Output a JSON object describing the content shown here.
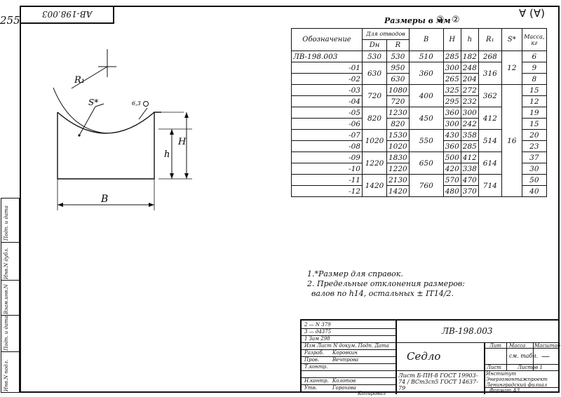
{
  "page_number": "255",
  "top_stamp": "AB-198.003",
  "drawing": {
    "dims": {
      "r1": "R₁",
      "s": "S*",
      "roughness": "6,3",
      "h_small": "h",
      "h_big": "H",
      "b": "B"
    }
  },
  "table": {
    "caption": "Размеры в мм",
    "caption_marks": [
      "②",
      "②"
    ],
    "roughness_mark": "∀ (∀)",
    "headers": {
      "designation": "Обозначение",
      "for_branches": "Для отводов",
      "dn": "Dн",
      "r": "R",
      "b": "B",
      "H": "H",
      "h": "h",
      "r1": "R₁",
      "s": "S*",
      "mass": "Масса, кг"
    },
    "rows": [
      {
        "designation": "ЛВ-198.003",
        "dn": "530",
        "r": "530",
        "b": "510",
        "H": "285",
        "h": "182",
        "r1": "268",
        "s": "",
        "mass": "6"
      },
      {
        "designation": "-01",
        "dn": "630",
        "r": "950",
        "b": "360",
        "H": "300",
        "h": "248",
        "r1": "316",
        "s": "12",
        "mass": "9"
      },
      {
        "designation": "-02",
        "dn": "",
        "r": "630",
        "b": "",
        "H": "265",
        "h": "204",
        "r1": "",
        "s": "",
        "mass": "8"
      },
      {
        "designation": "-03",
        "dn": "720",
        "r": "1080",
        "b": "400",
        "H": "325",
        "h": "272",
        "r1": "362",
        "s": "",
        "mass": "15"
      },
      {
        "designation": "-04",
        "dn": "",
        "r": "720",
        "b": "",
        "H": "295",
        "h": "232",
        "r1": "",
        "s": "",
        "mass": "12"
      },
      {
        "designation": "-05",
        "dn": "820",
        "r": "1230",
        "b": "450",
        "H": "360",
        "h": "300",
        "r1": "412",
        "s": "",
        "mass": "19"
      },
      {
        "designation": "-06",
        "dn": "",
        "r": "820",
        "b": "",
        "H": "300",
        "h": "242",
        "r1": "",
        "s": "16",
        "mass": "15"
      },
      {
        "designation": "-07",
        "dn": "1020",
        "r": "1530",
        "b": "550",
        "H": "430",
        "h": "358",
        "r1": "514",
        "s": "",
        "mass": "20"
      },
      {
        "designation": "-08",
        "dn": "",
        "r": "1020",
        "b": "",
        "H": "360",
        "h": "285",
        "r1": "",
        "s": "",
        "mass": "23"
      },
      {
        "designation": "-09",
        "dn": "1220",
        "r": "1830",
        "b": "650",
        "H": "500",
        "h": "412",
        "r1": "614",
        "s": "",
        "mass": "37"
      },
      {
        "designation": "-10",
        "dn": "",
        "r": "1220",
        "b": "",
        "H": "420",
        "h": "338",
        "r1": "",
        "s": "",
        "mass": "30"
      },
      {
        "designation": "-11",
        "dn": "1420",
        "r": "2130",
        "b": "760",
        "H": "570",
        "h": "470",
        "r1": "714",
        "s": "",
        "mass": "50"
      },
      {
        "designation": "-12",
        "dn": "",
        "r": "1420",
        "b": "",
        "H": "480",
        "h": "370",
        "r1": "",
        "s": "",
        "mass": "40"
      }
    ]
  },
  "notes": [
    "1.*Размер для справок.",
    "2. Предельные отклонения размеров:",
    "валов по h14, остальных ± IT14/2."
  ],
  "title_block": {
    "code": "ЛВ-198.003",
    "name": "Седло",
    "lit": "Лит",
    "mass": "Масса",
    "scale": "Масштаб",
    "mass_value": "см. табл.",
    "scale_value": "—",
    "sheet": "Лист",
    "sheets": "Листов 1",
    "material": "Лист Б-ПН-8 ГОСТ 19903-74 / ВСт3сп5 ГОСТ 14637-79",
    "org": "Институт Энергомонтажпроект Ленинградский филиал",
    "copied": "Копировал",
    "format": "Формат А3",
    "rev_rows": [
      "2 — N 379",
      "3 — д4375",
      "1 Зам 298"
    ],
    "roles": [
      "Изм Лист N докум. Подп. Дата",
      "Разраб.",
      "Пров.",
      "Т.контр.",
      "Н.контр.",
      "Утв."
    ],
    "names": [
      "Коровкин",
      "Вечтрова",
      "Колотов",
      "Горохова"
    ]
  },
  "side_strip": [
    "Инв.N подл.",
    "Подп. и дата",
    "Взам.инв.N",
    "Инв.N дубл.",
    "Подп. и дата"
  ]
}
